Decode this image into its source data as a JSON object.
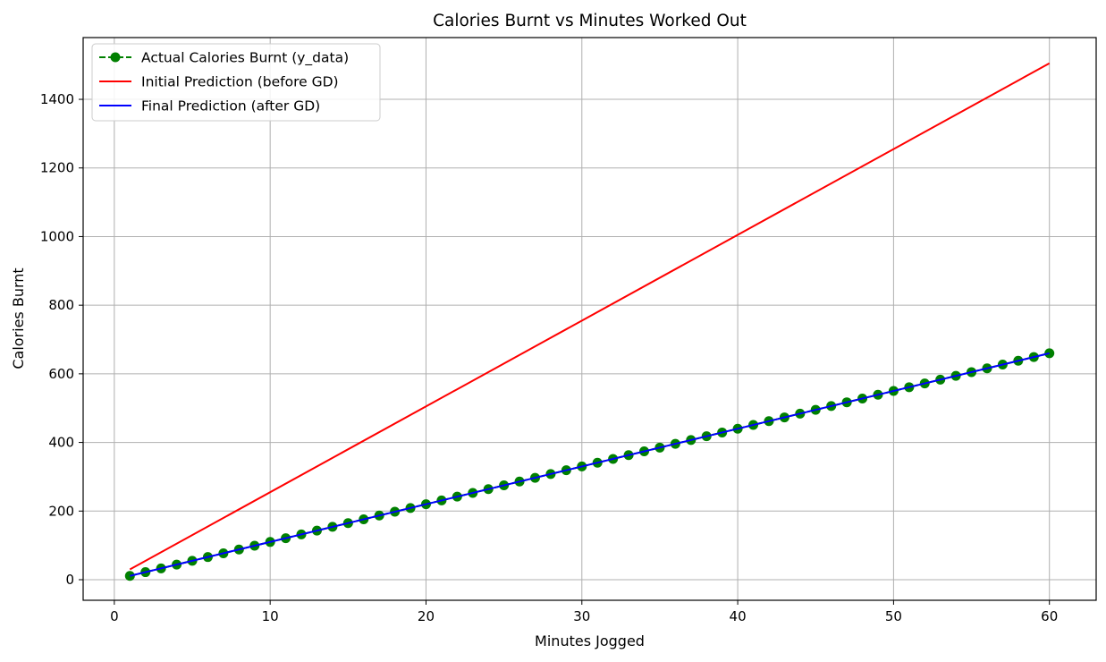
{
  "chart_data": {
    "type": "line",
    "title": "Calories Burnt vs Minutes Worked Out",
    "xlabel": "Minutes Jogged",
    "ylabel": "Calories Burnt",
    "xlim": [
      -2,
      63
    ],
    "ylim": [
      -60,
      1580
    ],
    "xticks": [
      0,
      10,
      20,
      30,
      40,
      50,
      60
    ],
    "yticks": [
      0,
      200,
      400,
      600,
      800,
      1000,
      1200,
      1400
    ],
    "grid": true,
    "legend_position": "top-left",
    "x": [
      1,
      2,
      3,
      4,
      5,
      6,
      7,
      8,
      9,
      10,
      11,
      12,
      13,
      14,
      15,
      16,
      17,
      18,
      19,
      20,
      21,
      22,
      23,
      24,
      25,
      26,
      27,
      28,
      29,
      30,
      31,
      32,
      33,
      34,
      35,
      36,
      37,
      38,
      39,
      40,
      41,
      42,
      43,
      44,
      45,
      46,
      47,
      48,
      49,
      50,
      51,
      52,
      53,
      54,
      55,
      56,
      57,
      58,
      59,
      60
    ],
    "series": [
      {
        "name": "Actual Calories Burnt (y_data)",
        "kind": "markers-dashed",
        "color": "#008000",
        "y_start": 11,
        "y_step": 11
      },
      {
        "name": "Initial Prediction (before GD)",
        "kind": "line",
        "color": "#ff0000",
        "x_range": [
          1,
          60
        ],
        "y_range": [
          30,
          1505
        ]
      },
      {
        "name": "Final Prediction (after GD)",
        "kind": "line",
        "color": "#0000ff",
        "x_range": [
          1,
          60
        ],
        "y_range": [
          11,
          660
        ]
      }
    ]
  }
}
